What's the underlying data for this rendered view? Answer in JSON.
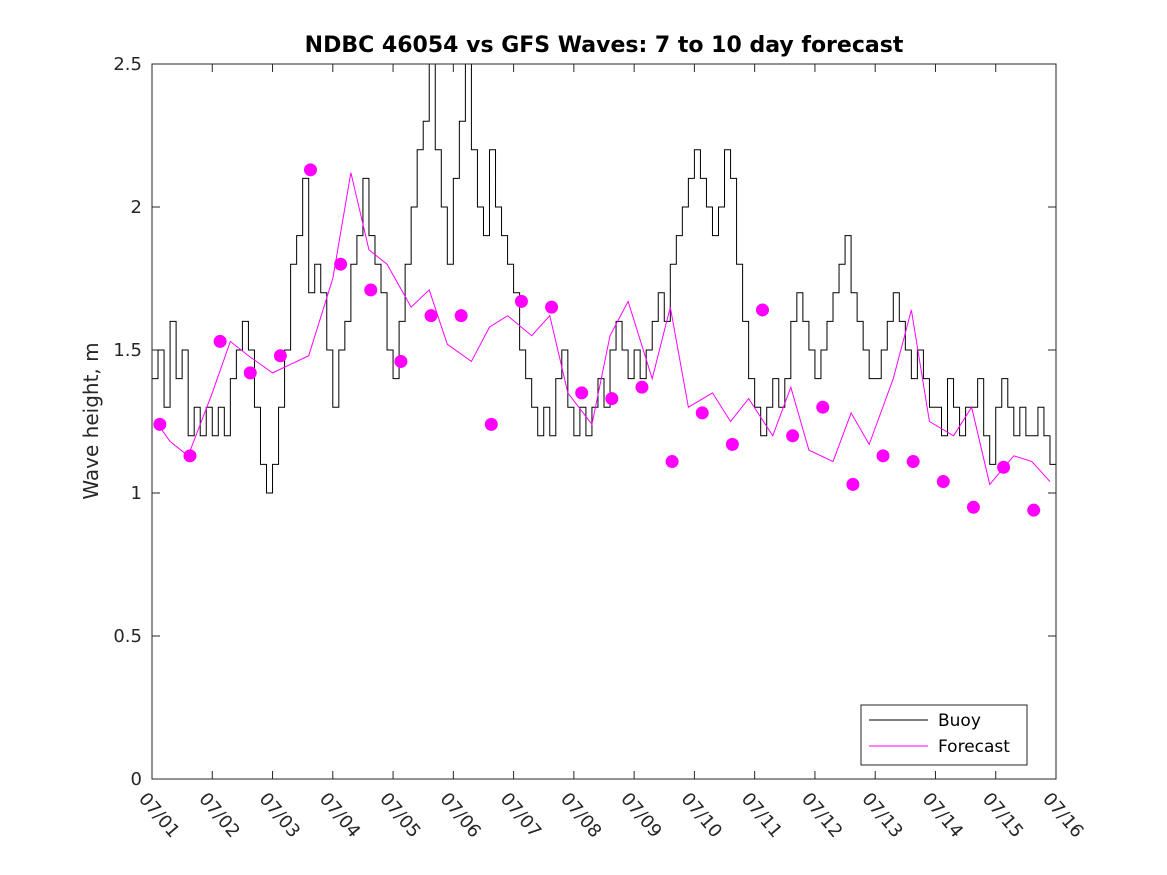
{
  "chart_data": {
    "type": "line",
    "title": "NDBC 46054 vs GFS Waves: 7 to 10 day forecast",
    "xlabel": "",
    "ylabel": "Wave height, m",
    "ylim": [
      0,
      2.5
    ],
    "yticks": [
      0,
      0.5,
      1,
      1.5,
      2,
      2.5
    ],
    "ytick_labels": [
      "0",
      "0.5",
      "1",
      "1.5",
      "2",
      "2.5"
    ],
    "xlim": [
      0,
      15
    ],
    "xticks": [
      0,
      1,
      2,
      3,
      4,
      5,
      6,
      7,
      8,
      9,
      10,
      11,
      12,
      13,
      14,
      15
    ],
    "xtick_labels": [
      "07/01",
      "07/02",
      "07/03",
      "07/04",
      "07/05",
      "07/06",
      "07/07",
      "07/08",
      "07/09",
      "07/10",
      "07/11",
      "07/12",
      "07/13",
      "07/14",
      "07/15",
      "07/16"
    ],
    "grid": false,
    "legend_position": "bottom-right",
    "colors": {
      "buoy": "#000000",
      "forecast": "#ff00ff"
    },
    "series": [
      {
        "name": "Buoy",
        "kind": "line",
        "x": [
          0.0,
          0.1,
          0.2,
          0.3,
          0.4,
          0.5,
          0.6,
          0.7,
          0.8,
          0.9,
          1.0,
          1.1,
          1.2,
          1.3,
          1.4,
          1.5,
          1.6,
          1.7,
          1.8,
          1.9,
          2.0,
          2.1,
          2.2,
          2.3,
          2.4,
          2.5,
          2.6,
          2.7,
          2.8,
          2.9,
          3.0,
          3.1,
          3.2,
          3.3,
          3.4,
          3.5,
          3.6,
          3.7,
          3.8,
          3.9,
          4.0,
          4.1,
          4.2,
          4.3,
          4.4,
          4.5,
          4.6,
          4.7,
          4.8,
          4.9,
          5.0,
          5.1,
          5.2,
          5.3,
          5.4,
          5.5,
          5.6,
          5.7,
          5.8,
          5.9,
          6.0,
          6.1,
          6.2,
          6.3,
          6.4,
          6.5,
          6.6,
          6.7,
          6.8,
          6.9,
          7.0,
          7.1,
          7.2,
          7.3,
          7.4,
          7.5,
          7.6,
          7.7,
          7.8,
          7.9,
          8.0,
          8.1,
          8.2,
          8.3,
          8.4,
          8.5,
          8.6,
          8.7,
          8.8,
          8.9,
          9.0,
          9.1,
          9.2,
          9.3,
          9.4,
          9.5,
          9.6,
          9.7,
          9.8,
          9.9,
          10.0,
          10.1,
          10.2,
          10.3,
          10.4,
          10.5,
          10.6,
          10.7,
          10.8,
          10.9,
          11.0,
          11.1,
          11.2,
          11.3,
          11.4,
          11.5,
          11.6,
          11.7,
          11.8,
          11.9,
          12.0,
          12.1,
          12.2,
          12.3,
          12.4,
          12.5,
          12.6,
          12.7,
          12.8,
          12.9,
          13.0,
          13.1,
          13.2,
          13.3,
          13.4,
          13.5,
          13.6,
          13.7,
          13.8,
          13.9,
          14.0,
          14.1,
          14.2,
          14.3,
          14.4,
          14.5,
          14.6,
          14.7,
          14.8,
          14.9,
          15.0
        ],
        "y": [
          1.4,
          1.5,
          1.3,
          1.6,
          1.4,
          1.5,
          1.2,
          1.3,
          1.2,
          1.3,
          1.2,
          1.3,
          1.2,
          1.4,
          1.5,
          1.6,
          1.5,
          1.3,
          1.1,
          1.0,
          1.1,
          1.3,
          1.5,
          1.8,
          1.9,
          2.1,
          1.7,
          1.8,
          1.7,
          1.5,
          1.3,
          1.5,
          1.6,
          1.8,
          1.9,
          2.1,
          1.9,
          1.8,
          1.7,
          1.5,
          1.4,
          1.6,
          1.8,
          2.0,
          2.2,
          2.3,
          2.5,
          2.2,
          2.0,
          1.8,
          2.1,
          2.3,
          2.5,
          2.2,
          2.0,
          1.9,
          2.2,
          2.0,
          1.9,
          1.8,
          1.7,
          1.5,
          1.4,
          1.3,
          1.2,
          1.3,
          1.2,
          1.4,
          1.5,
          1.3,
          1.2,
          1.3,
          1.2,
          1.3,
          1.4,
          1.3,
          1.5,
          1.6,
          1.5,
          1.4,
          1.5,
          1.4,
          1.5,
          1.6,
          1.7,
          1.6,
          1.8,
          1.9,
          2.0,
          2.1,
          2.2,
          2.1,
          2.0,
          1.9,
          2.0,
          2.2,
          2.1,
          1.8,
          1.6,
          1.4,
          1.3,
          1.2,
          1.3,
          1.4,
          1.3,
          1.4,
          1.6,
          1.7,
          1.6,
          1.5,
          1.4,
          1.5,
          1.6,
          1.7,
          1.8,
          1.9,
          1.7,
          1.6,
          1.5,
          1.4,
          1.4,
          1.5,
          1.6,
          1.7,
          1.6,
          1.5,
          1.4,
          1.5,
          1.4,
          1.3,
          1.3,
          1.2,
          1.4,
          1.3,
          1.2,
          1.3,
          1.3,
          1.4,
          1.2,
          1.1,
          1.3,
          1.4,
          1.3,
          1.2,
          1.3,
          1.2,
          1.2,
          1.3,
          1.2,
          1.1,
          1.3
        ]
      },
      {
        "name": "Forecast",
        "kind": "line",
        "x": [
          0.1,
          0.3,
          0.6,
          1.0,
          1.3,
          1.6,
          2.0,
          2.3,
          2.6,
          3.0,
          3.3,
          3.6,
          3.9,
          4.3,
          4.6,
          4.9,
          5.3,
          5.6,
          5.9,
          6.3,
          6.6,
          6.9,
          7.3,
          7.6,
          7.9,
          8.3,
          8.6,
          8.9,
          9.3,
          9.6,
          9.9,
          10.3,
          10.6,
          10.9,
          11.3,
          11.6,
          11.9,
          12.3,
          12.6,
          12.9,
          13.3,
          13.6,
          13.9,
          14.3,
          14.6,
          14.9
        ],
        "y": [
          1.24,
          1.18,
          1.13,
          1.35,
          1.53,
          1.48,
          1.42,
          1.45,
          1.48,
          1.75,
          2.12,
          1.85,
          1.8,
          1.65,
          1.71,
          1.52,
          1.46,
          1.58,
          1.62,
          1.55,
          1.62,
          1.35,
          1.24,
          1.55,
          1.67,
          1.4,
          1.65,
          1.3,
          1.35,
          1.25,
          1.33,
          1.2,
          1.37,
          1.15,
          1.11,
          1.28,
          1.17,
          1.4,
          1.64,
          1.25,
          1.2,
          1.3,
          1.03,
          1.13,
          1.11,
          1.04
        ]
      }
    ],
    "markers": {
      "name": "Forecast",
      "x": [
        0.13,
        0.63,
        1.13,
        1.63,
        2.13,
        2.63,
        3.13,
        3.63,
        4.13,
        4.63,
        5.13,
        5.63,
        6.13,
        6.63,
        7.13,
        7.63,
        8.13,
        8.63,
        9.13,
        9.63,
        10.13,
        10.63,
        11.13,
        11.63,
        12.13,
        12.63,
        13.13,
        13.63,
        14.13,
        14.63
      ],
      "y": [
        1.24,
        1.13,
        1.53,
        1.42,
        1.48,
        2.13,
        1.8,
        1.71,
        1.46,
        1.62,
        1.62,
        1.24,
        1.67,
        1.65,
        1.35,
        1.33,
        1.37,
        1.11,
        1.28,
        1.17,
        1.64,
        1.2,
        1.3,
        1.03,
        1.13,
        1.11,
        1.04,
        0.95,
        1.09,
        0.94
      ]
    },
    "legend": [
      {
        "label": "Buoy",
        "color": "#000000"
      },
      {
        "label": "Forecast",
        "color": "#ff00ff"
      }
    ]
  }
}
